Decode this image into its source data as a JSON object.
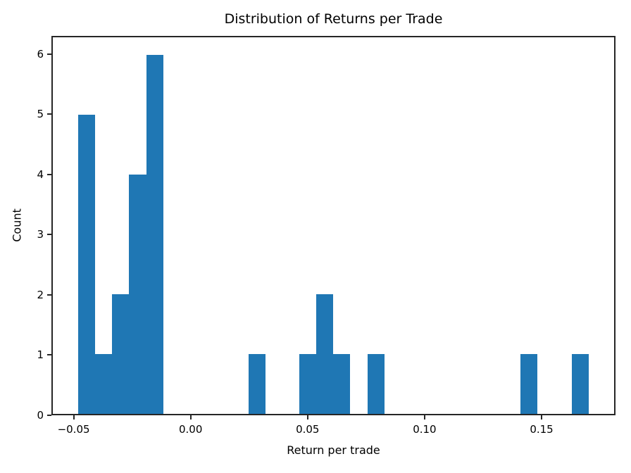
{
  "chart_data": {
    "type": "bar",
    "subtype": "histogram",
    "title": "Distribution of Returns per Trade",
    "xlabel": "Return per trade",
    "ylabel": "Count",
    "bar_color": "#1f77b4",
    "axis_color": "#262626",
    "text_color": "#000000",
    "grid": false,
    "legend_position": "none",
    "bin_edges": [
      -0.0486,
      -0.0413,
      -0.034,
      -0.0267,
      -0.0194,
      -0.012,
      -0.0047,
      0.0026,
      0.0099,
      0.0172,
      0.0245,
      0.0318,
      0.0391,
      0.0464,
      0.0537,
      0.061,
      0.0683,
      0.0756,
      0.083,
      0.0903,
      0.0976,
      0.1049,
      0.1122,
      0.1195,
      0.1268,
      0.1341,
      0.1414,
      0.1487,
      0.156,
      0.1633,
      0.1707
    ],
    "counts": [
      5,
      1,
      2,
      4,
      6,
      0,
      0,
      0,
      0,
      0,
      1,
      0,
      0,
      1,
      2,
      1,
      0,
      1,
      0,
      0,
      0,
      0,
      0,
      0,
      0,
      0,
      1,
      0,
      0,
      1
    ],
    "xlim": [
      -0.0595,
      0.1816
    ],
    "ylim": [
      0,
      6.3
    ],
    "xticks": [
      -0.05,
      0.0,
      0.05,
      0.1,
      0.15
    ],
    "xtick_labels": [
      "−0.05",
      "0.00",
      "0.05",
      "0.10",
      "0.15"
    ],
    "yticks": [
      0,
      1,
      2,
      3,
      4,
      5,
      6
    ],
    "ytick_labels": [
      "0",
      "1",
      "2",
      "3",
      "4",
      "5",
      "6"
    ]
  }
}
